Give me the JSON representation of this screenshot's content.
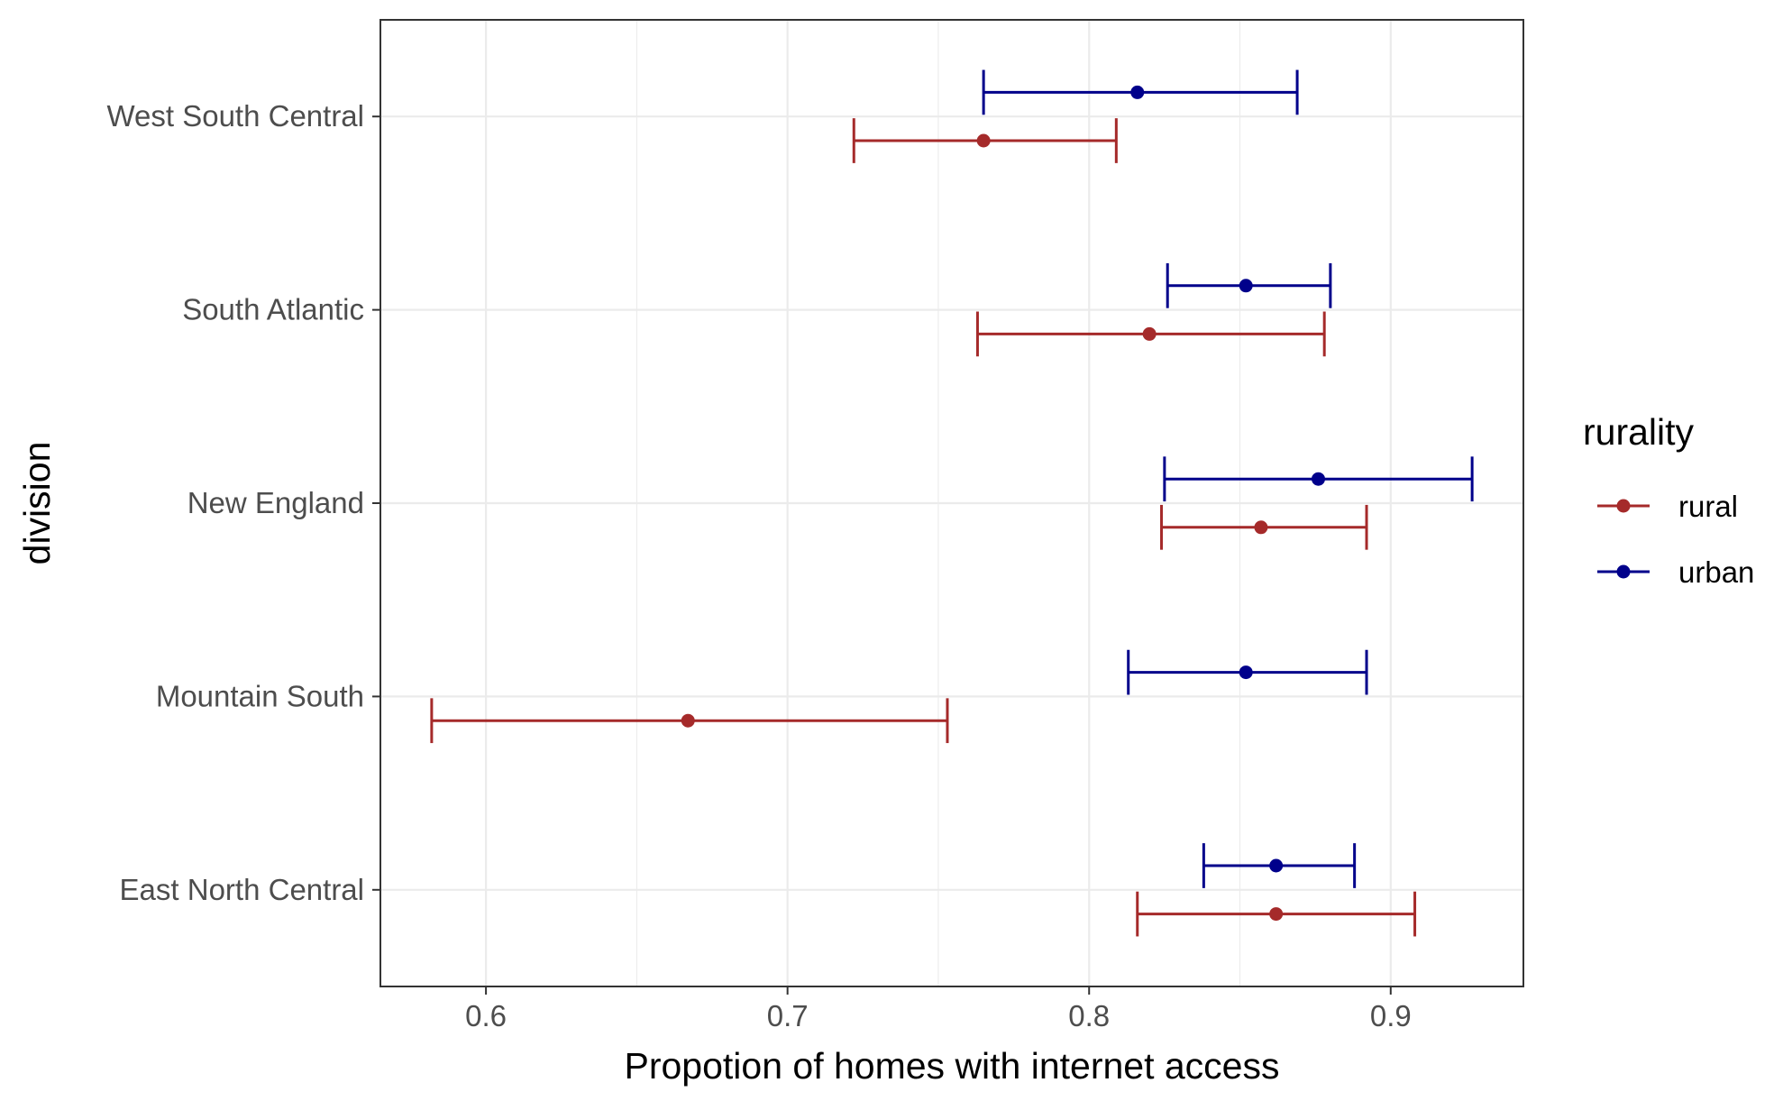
{
  "chart_data": {
    "type": "errorbar",
    "title": "",
    "xlabel": "Propotion of homes with internet access",
    "ylabel": "division",
    "xlim": [
      0.565,
      0.944
    ],
    "x_ticks": [
      "0.6",
      "0.7",
      "0.8",
      "0.9"
    ],
    "categories": [
      "West South Central",
      "South Atlantic",
      "New England",
      "Mountain South",
      "East North Central"
    ],
    "grid": true,
    "legend": {
      "title": "rurality",
      "placement": "right"
    },
    "series": [
      {
        "name": "rural",
        "color": "#A52A2A",
        "points": [
          {
            "category": "West South Central",
            "estimate": 0.765,
            "low": 0.722,
            "high": 0.809
          },
          {
            "category": "South Atlantic",
            "estimate": 0.82,
            "low": 0.763,
            "high": 0.878
          },
          {
            "category": "New England",
            "estimate": 0.857,
            "low": 0.824,
            "high": 0.892
          },
          {
            "category": "Mountain South",
            "estimate": 0.667,
            "low": 0.582,
            "high": 0.753
          },
          {
            "category": "East North Central",
            "estimate": 0.862,
            "low": 0.816,
            "high": 0.908
          }
        ]
      },
      {
        "name": "urban",
        "color": "#00008B",
        "points": [
          {
            "category": "West South Central",
            "estimate": 0.816,
            "low": 0.765,
            "high": 0.869
          },
          {
            "category": "South Atlantic",
            "estimate": 0.852,
            "low": 0.826,
            "high": 0.88
          },
          {
            "category": "New England",
            "estimate": 0.876,
            "low": 0.825,
            "high": 0.927
          },
          {
            "category": "Mountain South",
            "estimate": 0.852,
            "low": 0.813,
            "high": 0.892
          },
          {
            "category": "East North Central",
            "estimate": 0.862,
            "low": 0.838,
            "high": 0.888
          }
        ]
      }
    ]
  }
}
